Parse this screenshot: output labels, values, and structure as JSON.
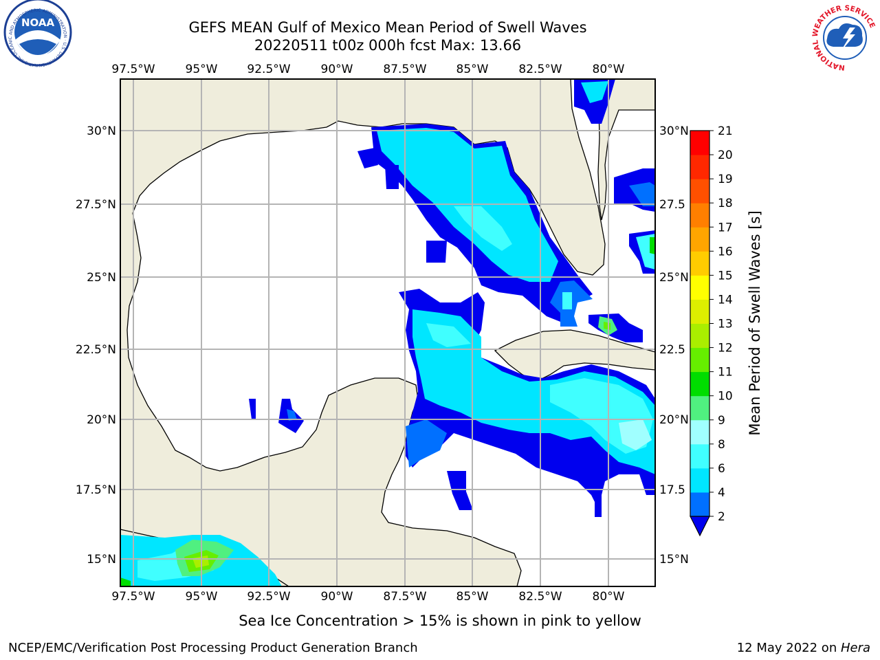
{
  "title_line1": "GEFS MEAN Gulf of Mexico Mean Period of Swell Waves",
  "title_line2": "20220511 t00z 000h fcst   Max: 13.66",
  "logo_left": "NOAA",
  "logo_left_ring": "NATIONAL OCEANIC AND ATMOSPHERIC ADMINISTRATION · U.S. DEPARTMENT OF COMMERCE",
  "logo_right_ring": "NATIONAL WEATHER SERVICE",
  "lon_labels": [
    "97.5°W",
    "95°W",
    "92.5°W",
    "90°W",
    "87.5°W",
    "85°W",
    "82.5°W",
    "80°W"
  ],
  "lat_labels_left": [
    "30°N",
    "27.5°N",
    "25°N",
    "22.5°N",
    "20°N",
    "17.5°N",
    "15°N"
  ],
  "lat_labels_right": [
    "30°N",
    "27.5",
    "25°N",
    "22.5",
    "20°N",
    "17.5",
    "15°N"
  ],
  "colorbar": {
    "label": "Mean Period of Swell Waves [s]",
    "ticks": [
      "2",
      "4",
      "6",
      "8",
      "9",
      "10",
      "11",
      "12",
      "13",
      "14",
      "15",
      "16",
      "17",
      "18",
      "19",
      "20",
      "21"
    ],
    "colors": [
      "#0000ee",
      "#0070ff",
      "#00e6ff",
      "#40ffff",
      "#a0ffff",
      "#50f080",
      "#00dd00",
      "#66ee00",
      "#aaee00",
      "#ddee00",
      "#ffff00",
      "#ffcc00",
      "#ffa500",
      "#ff7f00",
      "#ff5000",
      "#ff2800",
      "#ff0000"
    ]
  },
  "note": "Sea Ice Concentration > 15% is shown in pink to yellow",
  "credit": "NCEP/EMC/Verification Post Processing Product Generation Branch",
  "date_prefix": "12 May 2022 on ",
  "date_host": "Hera",
  "colors": {
    "land": "#efeddc",
    "grid": "#b4b4b4"
  }
}
